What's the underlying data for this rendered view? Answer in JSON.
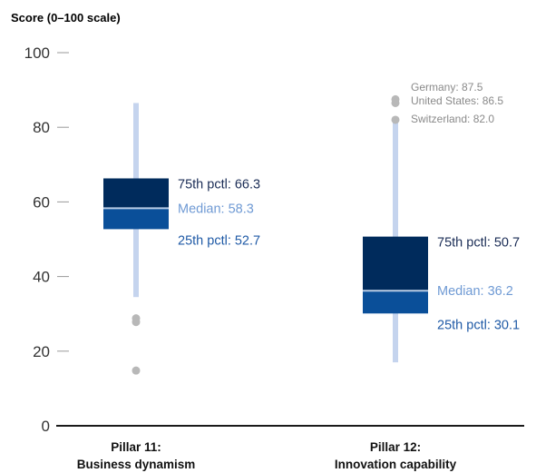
{
  "chart_data": {
    "type": "boxplot",
    "title": "",
    "ylabel": "Score (0–100 scale)",
    "ylim": [
      0,
      100
    ],
    "yticks": [
      0,
      20,
      40,
      60,
      80,
      100
    ],
    "grid": false,
    "categories": [
      {
        "name_line1": "Pillar 11:",
        "name_line2": "Business dynamism"
      },
      {
        "name_line1": "Pillar 12:",
        "name_line2": "Innovation capability"
      }
    ],
    "boxes": [
      {
        "whisker_min": 34.5,
        "whisker_max": 86.5,
        "q1": 52.7,
        "median": 58.3,
        "q3": 66.3,
        "q3_label": "75th pctl: 66.3",
        "median_label": "Median: 58.3",
        "q1_label": "25th pctl: 52.7",
        "outliers": [
          {
            "value": 28.8,
            "label": ""
          },
          {
            "value": 27.8,
            "label": ""
          },
          {
            "value": 14.8,
            "label": ""
          }
        ]
      },
      {
        "whisker_min": 17.0,
        "whisker_max": 82.0,
        "q1": 30.1,
        "median": 36.2,
        "q3": 50.7,
        "q3_label": "75th pctl: 50.7",
        "median_label": "Median: 36.2",
        "q1_label": "25th pctl: 30.1",
        "outliers": [
          {
            "value": 87.5,
            "label": "Germany: 87.5"
          },
          {
            "value": 86.5,
            "label": "United States: 86.5"
          },
          {
            "value": 82.0,
            "label": "Switzerland: 82.0"
          }
        ]
      }
    ],
    "colors": {
      "upper_box": "#002b5c",
      "lower_box": "#0a4f99",
      "median_line": "#b9cde6",
      "whisker": "#c5d4ee",
      "outlier": "#b8b8b8",
      "q3_text": "#1b2d56",
      "median_text": "#6f9ad4",
      "q1_text": "#1f5aa6",
      "axis": "#1a1a1a",
      "tick": "#999999"
    }
  }
}
